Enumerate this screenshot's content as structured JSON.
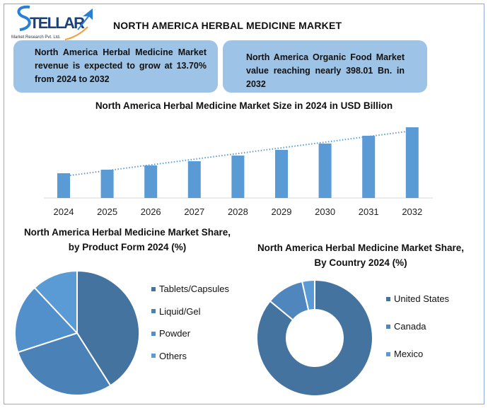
{
  "logo": {
    "brand": "STELLAR",
    "tagline": "Market Research Pvt. Ltd."
  },
  "title": "NORTH AMERICA HERBAL MEDICINE MARKET",
  "info_boxes": [
    {
      "text": "North America Herbal Medicine Market revenue is expected to grow at 13.70% from 2024 to 2032"
    },
    {
      "text": "North America Organic Food Market value reaching nearly 398.01 Bn. in 2032"
    }
  ],
  "colors": {
    "frame": "#8eaadb",
    "box": "#9dc3e6",
    "bar": "#5b9bd5",
    "trend": "#5b9bd5"
  },
  "chart_data": [
    {
      "type": "bar",
      "title": "North America Herbal Medicine Market Size in 2024 in USD Billion",
      "categories": [
        "2024",
        "2025",
        "2026",
        "2027",
        "2028",
        "2029",
        "2030",
        "2031",
        "2032"
      ],
      "values": [
        35,
        40,
        46,
        52,
        60,
        68,
        77,
        88,
        100
      ],
      "trendline": "linear, dotted",
      "grid": false,
      "yaxis_visible": false
    },
    {
      "type": "pie",
      "title": "North America Herbal Medicine Market Share, by Product Form 2024 (%)",
      "labels": [
        "Tablets/Capsules",
        "Liquid/Gel",
        "Powder",
        "Others"
      ],
      "values": [
        41,
        29,
        18,
        12
      ],
      "colors": [
        "#44739f",
        "#4a82b8",
        "#5290cb",
        "#5b9bd5"
      ],
      "legend": "right"
    },
    {
      "type": "donut",
      "title": "North America Herbal Medicine Market Share, By Country  2024 (%)",
      "labels": [
        "United States",
        "Canada",
        "Mexico"
      ],
      "values": [
        86,
        10.5,
        3.5
      ],
      "colors": [
        "#44739f",
        "#4f86bd",
        "#5b9bd5"
      ],
      "legend": "right"
    }
  ]
}
